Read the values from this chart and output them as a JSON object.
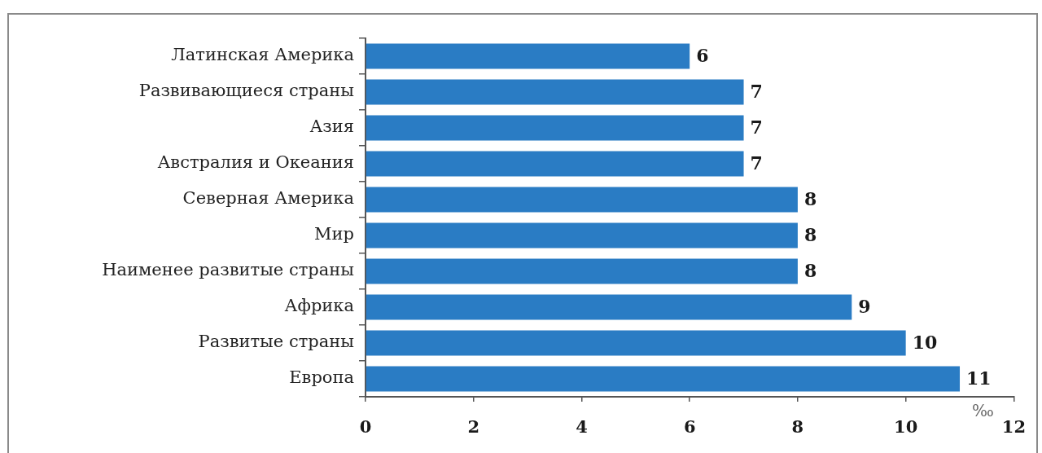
{
  "chart_data": {
    "type": "bar",
    "orientation": "horizontal",
    "categories": [
      "Латинская Америка",
      "Развивающиеся страны",
      "Азия",
      "Австралия и Океания",
      "Северная Америка",
      "Мир",
      "Наименее развитые страны",
      "Африка",
      "Развитые страны",
      "Европа"
    ],
    "values": [
      6,
      7,
      7,
      7,
      8,
      8,
      8,
      9,
      10,
      11
    ],
    "color": "#2a7cc4",
    "xlim": [
      0,
      12
    ],
    "xticks": [
      0,
      2,
      4,
      6,
      8,
      10,
      12
    ],
    "xlabel": "‰",
    "data_labels": true
  }
}
